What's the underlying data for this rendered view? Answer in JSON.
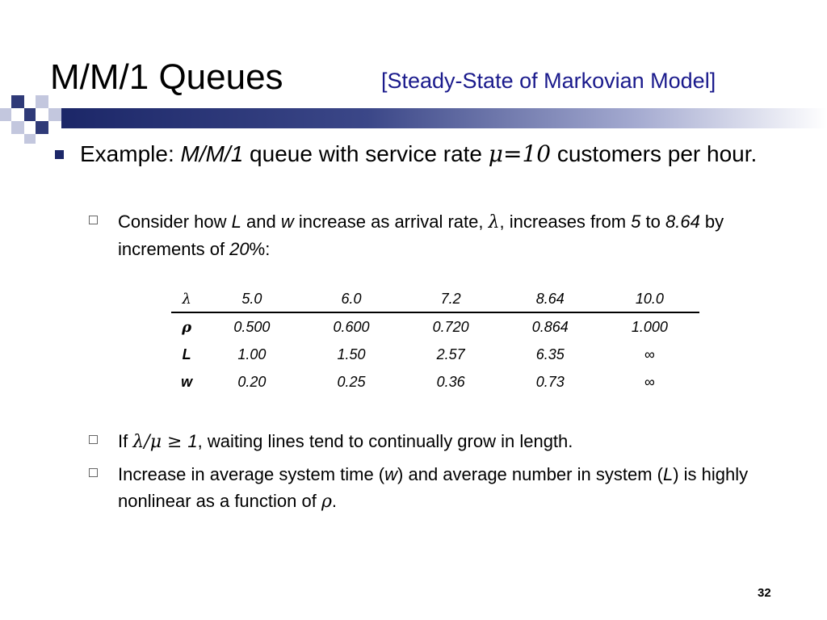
{
  "slide": {
    "title": "M/M/1 Queues",
    "subtitle": "[Steady-State of Markovian Model]",
    "page_number": "32",
    "accent_color": "#1c2768"
  },
  "bullet_main": {
    "prefix": "Example: ",
    "model": "M/M/1",
    "mid": " queue with service rate ",
    "rate": "μ=10",
    "suffix": " customers per hour."
  },
  "sub1": {
    "p1": "Consider how ",
    "L": "L",
    "p2": " and ",
    "w": "w",
    "p3": " increase as arrival rate, ",
    "lambda": "λ",
    "p4": ", increases from ",
    "from": "5",
    "p5": " to ",
    "to": "8.64",
    "p6": " by increments of ",
    "inc": "20",
    "p7": "%:"
  },
  "table": {
    "header": [
      "λ",
      "5.0",
      "6.0",
      "7.2",
      "8.64",
      "10.0"
    ],
    "rows": [
      {
        "label": "ρ",
        "values": [
          "0.500",
          "0.600",
          "0.720",
          "0.864",
          "1.000"
        ]
      },
      {
        "label": "L",
        "values": [
          "1.00",
          "1.50",
          "2.57",
          "6.35",
          "∞"
        ]
      },
      {
        "label": "w",
        "values": [
          "0.20",
          "0.25",
          "0.36",
          "0.73",
          "∞"
        ]
      }
    ]
  },
  "sub2": {
    "p1": "If ",
    "expr": "λ/μ ≥ ",
    "one": "1",
    "p2": ", waiting lines tend to continually grow in length."
  },
  "sub3": {
    "p1": "Increase in average system time (",
    "w": "w",
    "p2": ") and average number in system (",
    "L": "L",
    "p3": ") is highly nonlinear as a function of ",
    "rho": "ρ",
    "p4": "."
  }
}
